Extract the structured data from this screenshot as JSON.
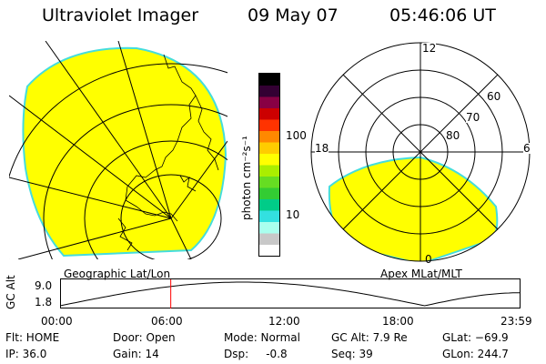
{
  "header": {
    "instrument": "Ultraviolet Imager",
    "date": "09 May 07",
    "time": "05:46:06 UT"
  },
  "colorbar": {
    "unit_label": "photon cm⁻²s⁻¹",
    "ticks": [
      "100",
      "10"
    ],
    "colors": [
      "#ffffff",
      "#c8c8c8",
      "#aaffee",
      "#33e0e0",
      "#00cc88",
      "#33cc33",
      "#66dd22",
      "#aaee00",
      "#ffff00",
      "#ffcc00",
      "#ff8800",
      "#ff3300",
      "#cc0000",
      "#880044",
      "#330033",
      "#000000"
    ]
  },
  "left_panel": {
    "caption": "Geographic Lat/Lon",
    "fill_color": "#ffff00",
    "edge_color": "#44dddd"
  },
  "right_panel": {
    "caption": "Apex MLat/MLT",
    "mlt_labels": {
      "top": "12",
      "left": "18",
      "right": "6",
      "bottom": "0"
    },
    "lat_labels": [
      "60",
      "70",
      "80"
    ],
    "fill_color": "#ffff00"
  },
  "altitude": {
    "axis_label": "GC Alt",
    "y_ticks": [
      "9.0",
      "1.8"
    ],
    "x_ticks": [
      "00:00",
      "06:00",
      "12:00",
      "18:00",
      "23:59"
    ],
    "current_marker_hour": 5.77,
    "marker_color": "#ff0000"
  },
  "info": {
    "flt": "Flt: HOME",
    "ip": "IP: 36.0",
    "door": "Door: Open",
    "gain": "Gain: 14",
    "mode": "Mode: Normal",
    "dsp": "Dsp:     -0.8",
    "gc_alt": "GC Alt: 7.9 Re",
    "seq": "Seq: 39",
    "glat": "GLat: −69.9",
    "glon": "GLon: 244.7"
  }
}
